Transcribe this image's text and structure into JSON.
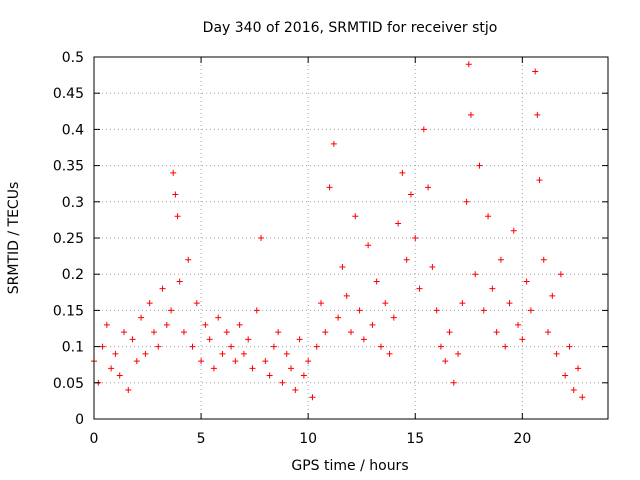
{
  "chart_data": {
    "type": "scatter",
    "title": "Day 340 of 2016, SRMTID for receiver stjo",
    "xlabel": "GPS time / hours",
    "ylabel": "SRMTID / TECUs",
    "xlim": [
      0,
      24
    ],
    "ylim": [
      0,
      0.5
    ],
    "x_ticks": [
      0,
      5,
      10,
      15,
      20
    ],
    "x_tick_labels": [
      "0",
      "5",
      "10",
      "15",
      "20"
    ],
    "y_ticks": [
      0,
      0.05,
      0.1,
      0.15,
      0.2,
      0.25,
      0.3,
      0.35,
      0.4,
      0.45,
      0.5
    ],
    "y_tick_labels": [
      "0",
      "0.05",
      "0.1",
      "0.15",
      "0.2",
      "0.25",
      "0.3",
      "0.35",
      "0.4",
      "0.45",
      "0.5"
    ],
    "grid": true,
    "legend": "none",
    "marker": "+",
    "color": "#ff0000",
    "series": [
      {
        "x": [
          0.0,
          0.2,
          0.4,
          0.6,
          0.8,
          1.0,
          1.2,
          1.4,
          1.6,
          1.8,
          2.0,
          2.2,
          2.4,
          2.6,
          2.8,
          3.0,
          3.2,
          3.4,
          3.6,
          3.7,
          3.8,
          3.9,
          4.0,
          4.2,
          4.4,
          4.6,
          4.8,
          5.0,
          5.2,
          5.4,
          5.6,
          5.8,
          6.0,
          6.2,
          6.4,
          6.6,
          6.8,
          7.0,
          7.2,
          7.4,
          7.6,
          7.8,
          8.0,
          8.2,
          8.4,
          8.6,
          8.8,
          9.0,
          9.2,
          9.4,
          9.6,
          9.8,
          10.0,
          10.2,
          10.4,
          10.6,
          10.8,
          11.0,
          11.2,
          11.4,
          11.6,
          11.8,
          12.0,
          12.2,
          12.4,
          12.6,
          12.8,
          13.0,
          13.2,
          13.4,
          13.6,
          13.8,
          14.0,
          14.2,
          14.4,
          14.6,
          14.8,
          15.0,
          15.2,
          15.4,
          15.6,
          15.8,
          16.0,
          16.2,
          16.4,
          16.6,
          16.8,
          17.0,
          17.2,
          17.4,
          17.5,
          17.6,
          17.8,
          18.0,
          18.2,
          18.4,
          18.6,
          18.8,
          19.0,
          19.2,
          19.4,
          19.6,
          19.8,
          20.0,
          20.2,
          20.4,
          20.6,
          20.7,
          20.8,
          21.0,
          21.2,
          21.4,
          21.6,
          21.8,
          22.0,
          22.2,
          22.4,
          22.6,
          22.8
        ],
        "y": [
          0.08,
          0.05,
          0.1,
          0.13,
          0.07,
          0.09,
          0.06,
          0.12,
          0.04,
          0.11,
          0.08,
          0.14,
          0.09,
          0.16,
          0.12,
          0.1,
          0.18,
          0.13,
          0.15,
          0.34,
          0.31,
          0.28,
          0.19,
          0.12,
          0.22,
          0.1,
          0.16,
          0.08,
          0.13,
          0.11,
          0.07,
          0.14,
          0.09,
          0.12,
          0.1,
          0.08,
          0.13,
          0.09,
          0.11,
          0.07,
          0.15,
          0.25,
          0.08,
          0.06,
          0.1,
          0.12,
          0.05,
          0.09,
          0.07,
          0.04,
          0.11,
          0.06,
          0.08,
          0.03,
          0.1,
          0.16,
          0.12,
          0.32,
          0.38,
          0.14,
          0.21,
          0.17,
          0.12,
          0.28,
          0.15,
          0.11,
          0.24,
          0.13,
          0.19,
          0.1,
          0.16,
          0.09,
          0.14,
          0.27,
          0.34,
          0.22,
          0.31,
          0.25,
          0.18,
          0.4,
          0.32,
          0.21,
          0.15,
          0.1,
          0.08,
          0.12,
          0.05,
          0.09,
          0.16,
          0.3,
          0.49,
          0.42,
          0.2,
          0.35,
          0.15,
          0.28,
          0.18,
          0.12,
          0.22,
          0.1,
          0.16,
          0.26,
          0.13,
          0.11,
          0.19,
          0.15,
          0.48,
          0.42,
          0.33,
          0.22,
          0.12,
          0.17,
          0.09,
          0.2,
          0.06,
          0.1,
          0.04,
          0.07,
          0.03
        ]
      }
    ]
  }
}
